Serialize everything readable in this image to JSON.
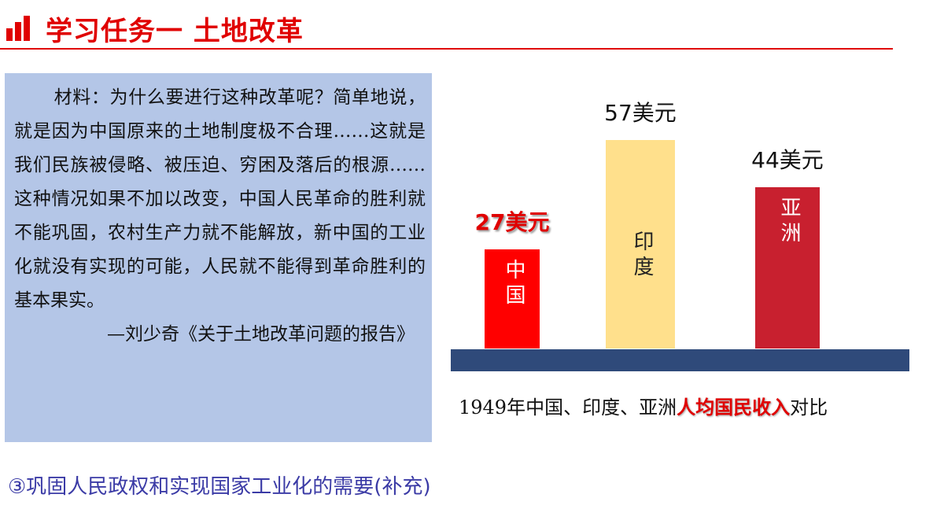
{
  "header": {
    "title": "学习任务一 土地改革"
  },
  "material": {
    "text": "材料：为什么要进行这种改革呢？简单地说，就是因为中国原来的土地制度极不合理……这就是我们民族被侵略、被压迫、穷困及落后的根源……这种情况如果不加以改变，中国人民革命的胜利就不能巩固，农村生产力就不能解放，新中国的工业化就没有实现的可能，人民就不能得到革命胜利的基本果实。",
    "source": "—刘少奇《关于土地改革问题的报告》"
  },
  "chart_data": {
    "type": "bar",
    "categories": [
      "中国",
      "印度",
      "亚洲"
    ],
    "values": [
      27,
      57,
      44
    ],
    "value_labels": [
      "27美元",
      "57美元",
      "44美元"
    ],
    "colors": [
      "#ff0000",
      "#ffe08c",
      "#c8202f"
    ],
    "value_label_colors": [
      "#e00000",
      "#111111",
      "#111111"
    ],
    "title_parts": [
      "1949年中国、印度、亚洲",
      "人均国民收入",
      "对比"
    ]
  },
  "note": "③巩固人民政权和实现国家工业化的需要(补充)"
}
